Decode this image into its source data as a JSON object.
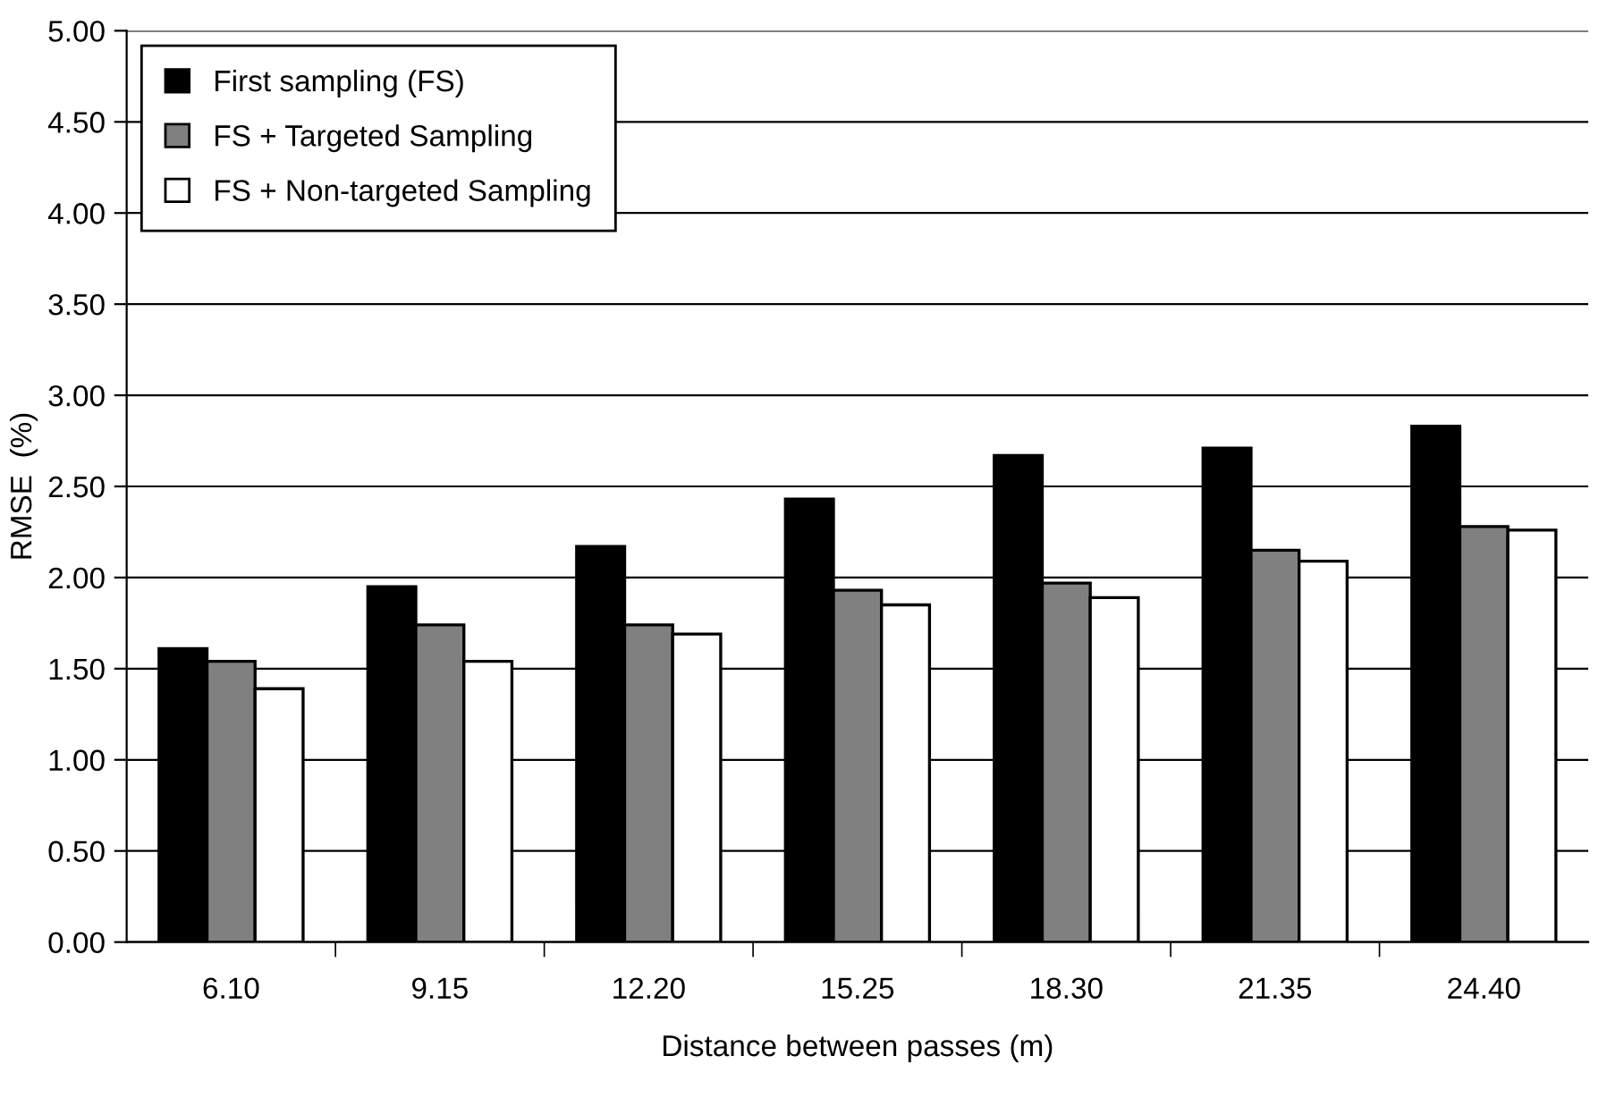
{
  "chart_data": {
    "type": "bar",
    "xlabel": "Distance between passes (m)",
    "ylabel": "RMSE  (%)",
    "categories": [
      "6.10",
      "9.15",
      "12.20",
      "15.25",
      "18.30",
      "21.35",
      "24.40"
    ],
    "series": [
      {
        "name": "First sampling (FS)",
        "color": "#000000",
        "values": [
          1.61,
          1.95,
          2.17,
          2.43,
          2.67,
          2.71,
          2.83
        ]
      },
      {
        "name": "FS + Targeted Sampling",
        "color": "#808080",
        "values": [
          1.54,
          1.74,
          1.74,
          1.93,
          1.97,
          2.15,
          2.28
        ]
      },
      {
        "name": "FS + Non-targeted Sampling",
        "color": "#ffffff",
        "values": [
          1.39,
          1.54,
          1.69,
          1.85,
          1.89,
          2.09,
          2.26
        ]
      }
    ],
    "ylim": [
      0,
      5
    ],
    "yticks": [
      {
        "value": 0,
        "label": "0.00"
      },
      {
        "value": 0.5,
        "label": "0.50"
      },
      {
        "value": 1,
        "label": "1.00"
      },
      {
        "value": 1.5,
        "label": "1.50"
      },
      {
        "value": 2,
        "label": "2.00"
      },
      {
        "value": 2.5,
        "label": "2.50"
      },
      {
        "value": 3,
        "label": "3.00"
      },
      {
        "value": 3.5,
        "label": "3.50"
      },
      {
        "value": 4,
        "label": "4.00"
      },
      {
        "value": 4.5,
        "label": "4.50"
      },
      {
        "value": 5,
        "label": "5.00"
      }
    ],
    "grid": "y",
    "legend": "top left"
  }
}
